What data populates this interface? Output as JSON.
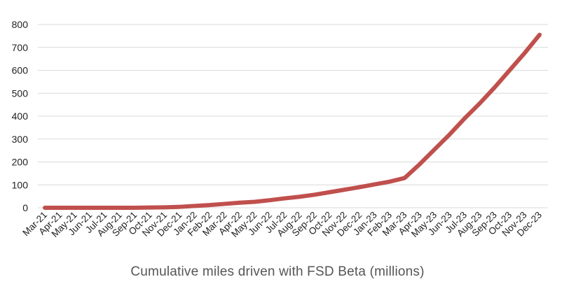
{
  "chart_data": {
    "type": "line",
    "title": "Cumulative miles driven with FSD Beta (millions)",
    "xlabel": "",
    "ylabel": "",
    "ylim": [
      0,
      800
    ],
    "yticks": [
      0,
      100,
      200,
      300,
      400,
      500,
      600,
      700,
      800
    ],
    "grid": true,
    "categories": [
      "Mar-21",
      "Apr-21",
      "May-21",
      "Jun-21",
      "Jul-21",
      "Aug-21",
      "Sep-21",
      "Oct-21",
      "Nov-21",
      "Dec-21",
      "Jan-22",
      "Feb-22",
      "Mar-22",
      "Apr-22",
      "May-22",
      "Jun-22",
      "Jul-22",
      "Aug-22",
      "Sep-22",
      "Oct-22",
      "Nov-22",
      "Dec-22",
      "Jan-23",
      "Feb-23",
      "Mar-23",
      "Apr-23",
      "May-23",
      "Jun-23",
      "Jul-23",
      "Aug-23",
      "Sep-23",
      "Oct-23",
      "Nov-23",
      "Dec-23"
    ],
    "series": [
      {
        "name": "Cumulative miles driven with FSD Beta (millions)",
        "color": "#c0504d",
        "values": [
          0,
          0,
          0,
          0,
          0,
          0,
          0,
          1,
          2,
          4,
          8,
          12,
          17,
          22,
          26,
          33,
          41,
          48,
          57,
          68,
          79,
          90,
          102,
          114,
          130,
          190,
          255,
          320,
          390,
          455,
          525,
          600,
          675,
          755
        ]
      }
    ]
  }
}
